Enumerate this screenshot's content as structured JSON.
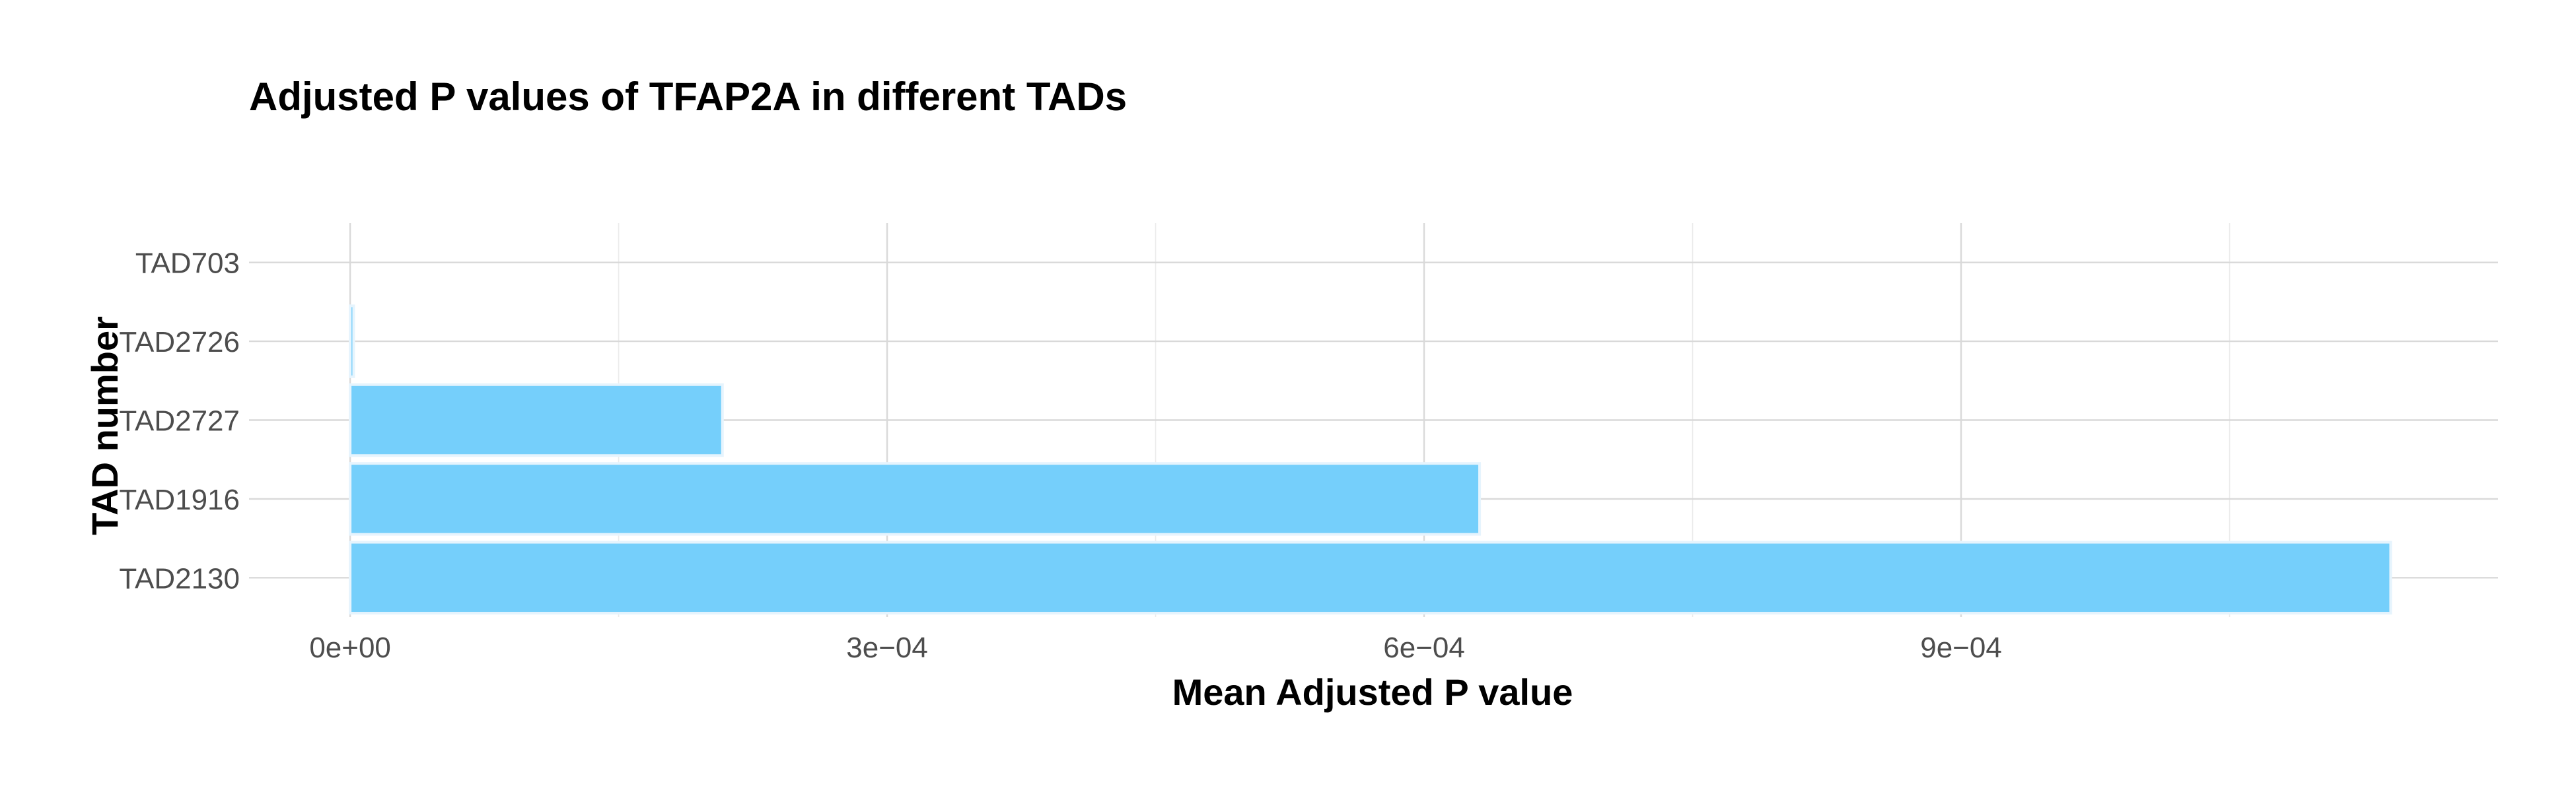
{
  "chart_data": {
    "type": "bar",
    "orientation": "horizontal",
    "title": "Adjusted P values of TFAP2A in different TADs",
    "xlabel": "Mean Adjusted P value",
    "ylabel": "TAD number",
    "categories": [
      "TAD703",
      "TAD2726",
      "TAD2727",
      "TAD1916",
      "TAD2130"
    ],
    "values": [
      0.0,
      2e-06,
      0.000208,
      0.000631,
      0.00114
    ],
    "xlim": [
      -5.65e-05,
      0.0012
    ],
    "x_ticks": [
      0,
      0.0003,
      0.0006,
      0.0009
    ],
    "x_tick_labels": [
      "0e+00",
      "3e−04",
      "6e−04",
      "9e−04"
    ],
    "grid": true,
    "bar_color": "#75cffb",
    "bar_outline_color": "#e6f4fd"
  }
}
